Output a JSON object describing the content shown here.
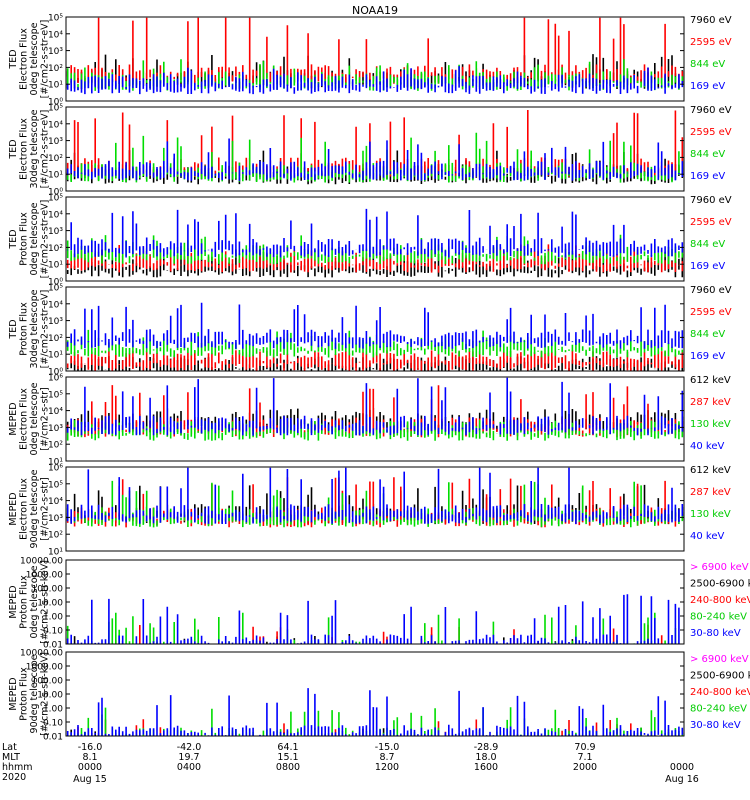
{
  "title": "NOAA19",
  "colors": {
    "black": "#000000",
    "red": "#ff0000",
    "green": "#00dd00",
    "blue": "#0000ff",
    "magenta": "#ff00ff"
  },
  "chart_data": [
    {
      "type": "line",
      "panel": 1,
      "ylog": true,
      "ylim": [
        1,
        100000
      ],
      "yticks": [
        "10⁰",
        "10¹",
        "10²",
        "10³",
        "10⁴",
        "10⁵"
      ],
      "ylabel": [
        "TED",
        "Electron Flux",
        "0deg telescope",
        "[#/cm2-s-str-eV]"
      ],
      "series": [
        {
          "name": "7960 eV",
          "color": "#000000",
          "level": 1.5,
          "spike": 1.2
        },
        {
          "name": "2595 eV",
          "color": "#ff0000",
          "level": 1.8,
          "spike": 3.5
        },
        {
          "name": "844 eV",
          "color": "#00dd00",
          "level": 1.4,
          "spike": 1.0
        },
        {
          "name": "169 eV",
          "color": "#0000ff",
          "level": 1.2,
          "spike": 0.8
        }
      ]
    },
    {
      "type": "line",
      "panel": 2,
      "ylog": true,
      "ylim": [
        1,
        100000
      ],
      "yticks": [
        "10⁰",
        "10¹",
        "10²",
        "10³",
        "10⁴",
        "10⁵"
      ],
      "ylabel": [
        "TED",
        "Electron Flux",
        "30deg telescope",
        "[#/cm2-s-str-eV]"
      ],
      "series": [
        {
          "name": "7960 eV",
          "color": "#000000",
          "level": 1.2,
          "spike": 1.2
        },
        {
          "name": "2595 eV",
          "color": "#ff0000",
          "level": 1.6,
          "spike": 3.0
        },
        {
          "name": "844 eV",
          "color": "#00dd00",
          "level": 1.3,
          "spike": 2.0
        },
        {
          "name": "169 eV",
          "color": "#0000ff",
          "level": 1.4,
          "spike": 1.6
        }
      ]
    },
    {
      "type": "line",
      "panel": 3,
      "ylog": true,
      "ylim": [
        1,
        100000
      ],
      "yticks": [
        "10⁰",
        "10¹",
        "10²",
        "10³",
        "10⁴",
        "10⁵"
      ],
      "ylabel": [
        "TED",
        "Proton Flux",
        "0deg telescope",
        "[#/cm2-s-str-eV]"
      ],
      "series": [
        {
          "name": "7960 eV",
          "color": "#000000",
          "level": 1.0,
          "spike": 0.8
        },
        {
          "name": "2595 eV",
          "color": "#ff0000",
          "level": 1.3,
          "spike": 0.8
        },
        {
          "name": "844 eV",
          "color": "#00dd00",
          "level": 1.8,
          "spike": 0.9
        },
        {
          "name": "169 eV",
          "color": "#0000ff",
          "level": 2.2,
          "spike": 2.0
        }
      ]
    },
    {
      "type": "line",
      "panel": 4,
      "ylog": true,
      "ylim": [
        1,
        100000
      ],
      "yticks": [
        "10⁰",
        "10¹",
        "10²",
        "10³",
        "10⁴",
        "10⁵"
      ],
      "ylabel": [
        "TED",
        "Proton Flux",
        "30deg telescope",
        "[#/cm2-s-str-eV]"
      ],
      "series": [
        {
          "name": "7960 eV",
          "color": "#000000",
          "level": 0.5,
          "spike": 0.3
        },
        {
          "name": "2595 eV",
          "color": "#ff0000",
          "level": 0.8,
          "spike": 0.4
        },
        {
          "name": "844 eV",
          "color": "#00dd00",
          "level": 1.6,
          "spike": 0.8
        },
        {
          "name": "169 eV",
          "color": "#0000ff",
          "level": 2.1,
          "spike": 1.8
        }
      ]
    },
    {
      "type": "line",
      "panel": 5,
      "ylog": true,
      "ylim": [
        10,
        1000000
      ],
      "yticks": [
        "10¹",
        "10²",
        "10³",
        "10⁴",
        "10⁵",
        "10⁶"
      ],
      "ylabel": [
        "MEPED",
        "Electron Flux",
        "0deg telescope",
        "[#/cm2-s-str]"
      ],
      "series": [
        {
          "name": "612 keV",
          "color": "#000000",
          "level": 2.5,
          "spike": 0.6
        },
        {
          "name": "287 keV",
          "color": "#ff0000",
          "level": 2.2,
          "spike": 2.2
        },
        {
          "name": "130 keV",
          "color": "#00dd00",
          "level": 2.0,
          "spike": 0.4
        },
        {
          "name": "40 keV",
          "color": "#0000ff",
          "level": 2.3,
          "spike": 2.5
        }
      ]
    },
    {
      "type": "line",
      "panel": 6,
      "ylog": true,
      "ylim": [
        10,
        1000000
      ],
      "yticks": [
        "10¹",
        "10²",
        "10³",
        "10⁴",
        "10⁵",
        "10⁶"
      ],
      "ylabel": [
        "MEPED",
        "Electron Flux",
        "90deg telescope",
        "[#/cm2-s-str]"
      ],
      "series": [
        {
          "name": "612 keV",
          "color": "#000000",
          "level": 2.4,
          "spike": 1.4
        },
        {
          "name": "287 keV",
          "color": "#ff0000",
          "level": 2.2,
          "spike": 2.0
        },
        {
          "name": "130 keV",
          "color": "#00dd00",
          "level": 2.2,
          "spike": 1.8
        },
        {
          "name": "40 keV",
          "color": "#0000ff",
          "level": 2.4,
          "spike": 2.6
        }
      ]
    },
    {
      "type": "line",
      "panel": 7,
      "ylog": true,
      "ylim": [
        0.01,
        10000
      ],
      "yticks": [
        "0.01",
        "0.10",
        "1.00",
        "10.00",
        "100.00",
        "1000.00",
        "10000.00"
      ],
      "ylabel": [
        "MEPED",
        "Proton Flux",
        "0deg telescope",
        "[#/cm2-s-str-keV]"
      ],
      "series": [
        {
          "name": "> 6900 keV",
          "color": "#ff00ff",
          "level": -1.5,
          "spike": 0.8
        },
        {
          "name": "2500-6900 keV",
          "color": "#000000",
          "level": -0.6,
          "spike": 1.2
        },
        {
          "name": "240-800 keV",
          "color": "#ff0000",
          "level": -0.8,
          "spike": 2.0
        },
        {
          "name": "80-240 keV",
          "color": "#00dd00",
          "level": -0.1,
          "spike": 2.2
        },
        {
          "name": "30-80 keV",
          "color": "#0000ff",
          "level": 0.3,
          "spike": 3.0
        }
      ]
    },
    {
      "type": "line",
      "panel": 8,
      "ylog": true,
      "ylim": [
        0.01,
        10000
      ],
      "yticks": [
        "0.01",
        "0.10",
        "1.00",
        "10.00",
        "100.00",
        "1000.00",
        "10000.00"
      ],
      "ylabel": [
        "MEPED",
        "Proton Flux",
        "90deg telescope",
        "[#/cm2-s-str-keV]"
      ],
      "series": [
        {
          "name": "> 6900 keV",
          "color": "#ff00ff",
          "level": -1.5,
          "spike": 0.8
        },
        {
          "name": "2500-6900 keV",
          "color": "#000000",
          "level": -0.7,
          "spike": 1.2
        },
        {
          "name": "240-800 keV",
          "color": "#ff0000",
          "level": -1.0,
          "spike": 2.0
        },
        {
          "name": "80-240 keV",
          "color": "#00dd00",
          "level": 0.2,
          "spike": 1.8
        },
        {
          "name": "30-80 keV",
          "color": "#0000ff",
          "level": 0.4,
          "spike": 2.8
        }
      ]
    }
  ],
  "xaxis": {
    "row_labels": [
      "Lat",
      "MLT",
      "hhmm",
      "2020"
    ],
    "ticks": [
      {
        "lat": "-16.0",
        "mlt": "8.1",
        "hhmm": "0000",
        "date": "Aug 15"
      },
      {
        "lat": "-42.0",
        "mlt": "19.7",
        "hhmm": "0400",
        "date": ""
      },
      {
        "lat": "64.1",
        "mlt": "15.1",
        "hhmm": "0800",
        "date": ""
      },
      {
        "lat": "-15.0",
        "mlt": "8.7",
        "hhmm": "1200",
        "date": ""
      },
      {
        "lat": "-28.9",
        "mlt": "18.0",
        "hhmm": "1600",
        "date": ""
      },
      {
        "lat": "70.9",
        "mlt": "7.1",
        "hhmm": "2000",
        "date": ""
      },
      {
        "lat": "",
        "mlt": "",
        "hhmm": "0000",
        "date": "Aug 16"
      }
    ]
  }
}
